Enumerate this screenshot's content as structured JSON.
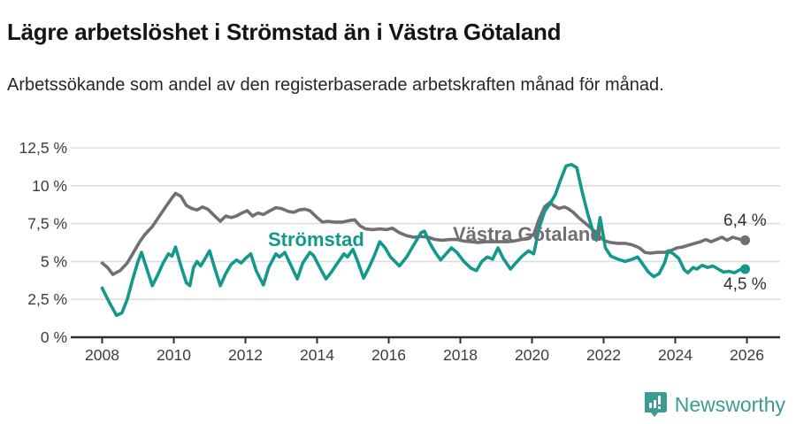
{
  "header": {
    "title": "Lägre arbetslöshet i Strömstad än i Västra Götaland",
    "subtitle": "Arbetssökande som andel av den registerbaserade arbetskraften månad för månad."
  },
  "footer": {
    "brand": "Newsworthy",
    "logo_icon": "newsworthy-speech-bubble-bar-chart-icon",
    "brand_color": "#3b9c94"
  },
  "colors": {
    "stromstad": "#12998b",
    "vastra_gotaland": "#6f6f74",
    "gridline": "#dedede",
    "axis": "#2f2f2f",
    "tick_text": "#3d3d3d"
  },
  "chart_data": {
    "type": "line",
    "title": "Lägre arbetslöshet i Strömstad än i Västra Götaland",
    "subtitle": "Arbetssökande som andel av den registerbaserade arbetskraften månad för månad.",
    "xlabel": "",
    "ylabel": "",
    "grid": "horizontal",
    "legend": "inline-labels",
    "xlim": [
      2007.45,
      2026.9
    ],
    "ylim": [
      0,
      12.5
    ],
    "x_tick_values": [
      2008,
      2010,
      2012,
      2014,
      2016,
      2018,
      2020,
      2022,
      2024,
      2026
    ],
    "x_tick_labels": [
      "2008",
      "2010",
      "2012",
      "2014",
      "2016",
      "2018",
      "2020",
      "2022",
      "2024",
      "2026"
    ],
    "y_tick_values": [
      0,
      2.5,
      5,
      7.5,
      10,
      12.5
    ],
    "y_tick_labels": [
      "0 %",
      "2,5 %",
      "5 %",
      "7,5 %",
      "10 %",
      "12,5 %"
    ],
    "series": [
      {
        "name": "Västra Götaland",
        "color": "#6f6f74",
        "end_label": "6,4 %",
        "final_value": 6.4,
        "points": [
          [
            2008.0,
            4.9
          ],
          [
            2008.15,
            4.6
          ],
          [
            2008.3,
            4.15
          ],
          [
            2008.5,
            4.4
          ],
          [
            2008.7,
            4.9
          ],
          [
            2008.9,
            5.7
          ],
          [
            2009.05,
            6.3
          ],
          [
            2009.2,
            6.8
          ],
          [
            2009.4,
            7.3
          ],
          [
            2009.6,
            8.0
          ],
          [
            2009.8,
            8.7
          ],
          [
            2009.95,
            9.2
          ],
          [
            2010.05,
            9.5
          ],
          [
            2010.2,
            9.3
          ],
          [
            2010.35,
            8.7
          ],
          [
            2010.5,
            8.5
          ],
          [
            2010.65,
            8.4
          ],
          [
            2010.8,
            8.6
          ],
          [
            2010.95,
            8.45
          ],
          [
            2011.1,
            8.1
          ],
          [
            2011.3,
            7.65
          ],
          [
            2011.45,
            8.0
          ],
          [
            2011.6,
            7.9
          ],
          [
            2011.75,
            8.0
          ],
          [
            2011.9,
            8.2
          ],
          [
            2012.05,
            8.35
          ],
          [
            2012.2,
            8.0
          ],
          [
            2012.35,
            8.2
          ],
          [
            2012.5,
            8.1
          ],
          [
            2012.65,
            8.3
          ],
          [
            2012.85,
            8.55
          ],
          [
            2013.0,
            8.5
          ],
          [
            2013.2,
            8.3
          ],
          [
            2013.35,
            8.25
          ],
          [
            2013.5,
            8.4
          ],
          [
            2013.65,
            8.45
          ],
          [
            2013.8,
            8.35
          ],
          [
            2014.0,
            7.9
          ],
          [
            2014.15,
            7.6
          ],
          [
            2014.3,
            7.65
          ],
          [
            2014.5,
            7.6
          ],
          [
            2014.7,
            7.6
          ],
          [
            2014.9,
            7.7
          ],
          [
            2015.05,
            7.75
          ],
          [
            2015.2,
            7.35
          ],
          [
            2015.35,
            7.15
          ],
          [
            2015.55,
            7.1
          ],
          [
            2015.75,
            7.15
          ],
          [
            2015.95,
            7.1
          ],
          [
            2016.1,
            7.2
          ],
          [
            2016.3,
            6.9
          ],
          [
            2016.5,
            6.7
          ],
          [
            2016.7,
            6.6
          ],
          [
            2016.9,
            6.65
          ],
          [
            2017.1,
            6.6
          ],
          [
            2017.3,
            6.45
          ],
          [
            2017.5,
            6.4
          ],
          [
            2017.7,
            6.45
          ],
          [
            2017.9,
            6.45
          ],
          [
            2018.1,
            6.35
          ],
          [
            2018.3,
            6.3
          ],
          [
            2018.5,
            6.25
          ],
          [
            2018.7,
            6.3
          ],
          [
            2018.9,
            6.3
          ],
          [
            2019.1,
            6.3
          ],
          [
            2019.3,
            6.3
          ],
          [
            2019.5,
            6.35
          ],
          [
            2019.7,
            6.45
          ],
          [
            2019.9,
            6.55
          ],
          [
            2020.05,
            6.8
          ],
          [
            2020.2,
            7.8
          ],
          [
            2020.35,
            8.6
          ],
          [
            2020.5,
            8.9
          ],
          [
            2020.6,
            8.7
          ],
          [
            2020.75,
            8.5
          ],
          [
            2020.9,
            8.6
          ],
          [
            2021.0,
            8.5
          ],
          [
            2021.15,
            8.25
          ],
          [
            2021.3,
            7.9
          ],
          [
            2021.45,
            7.6
          ],
          [
            2021.6,
            7.3
          ],
          [
            2021.75,
            7.0
          ],
          [
            2021.9,
            6.6
          ],
          [
            2022.05,
            6.35
          ],
          [
            2022.2,
            6.25
          ],
          [
            2022.4,
            6.2
          ],
          [
            2022.6,
            6.2
          ],
          [
            2022.8,
            6.1
          ],
          [
            2023.0,
            5.9
          ],
          [
            2023.15,
            5.6
          ],
          [
            2023.3,
            5.55
          ],
          [
            2023.5,
            5.6
          ],
          [
            2023.7,
            5.6
          ],
          [
            2023.9,
            5.75
          ],
          [
            2024.05,
            5.9
          ],
          [
            2024.2,
            5.95
          ],
          [
            2024.4,
            6.1
          ],
          [
            2024.55,
            6.2
          ],
          [
            2024.7,
            6.3
          ],
          [
            2024.85,
            6.45
          ],
          [
            2025.0,
            6.3
          ],
          [
            2025.15,
            6.45
          ],
          [
            2025.3,
            6.6
          ],
          [
            2025.45,
            6.4
          ],
          [
            2025.6,
            6.6
          ],
          [
            2025.75,
            6.5
          ],
          [
            2025.95,
            6.4
          ]
        ]
      },
      {
        "name": "Strömstad",
        "color": "#12998b",
        "end_label": "4,5 %",
        "final_value": 4.5,
        "points": [
          [
            2008.0,
            3.25
          ],
          [
            2008.2,
            2.3
          ],
          [
            2008.4,
            1.45
          ],
          [
            2008.55,
            1.6
          ],
          [
            2008.7,
            2.5
          ],
          [
            2008.85,
            3.8
          ],
          [
            2009.0,
            5.0
          ],
          [
            2009.1,
            5.6
          ],
          [
            2009.25,
            4.5
          ],
          [
            2009.4,
            3.4
          ],
          [
            2009.55,
            4.1
          ],
          [
            2009.7,
            4.9
          ],
          [
            2009.85,
            5.5
          ],
          [
            2009.95,
            5.35
          ],
          [
            2010.05,
            5.95
          ],
          [
            2010.2,
            4.7
          ],
          [
            2010.35,
            3.6
          ],
          [
            2010.45,
            3.4
          ],
          [
            2010.55,
            4.6
          ],
          [
            2010.65,
            5.0
          ],
          [
            2010.75,
            4.7
          ],
          [
            2010.9,
            5.3
          ],
          [
            2011.0,
            5.7
          ],
          [
            2011.15,
            4.5
          ],
          [
            2011.3,
            3.4
          ],
          [
            2011.45,
            4.2
          ],
          [
            2011.6,
            4.8
          ],
          [
            2011.75,
            5.1
          ],
          [
            2011.88,
            4.9
          ],
          [
            2012.0,
            5.2
          ],
          [
            2012.15,
            5.5
          ],
          [
            2012.3,
            4.4
          ],
          [
            2012.5,
            3.45
          ],
          [
            2012.65,
            4.6
          ],
          [
            2012.85,
            5.5
          ],
          [
            2012.95,
            5.3
          ],
          [
            2013.1,
            5.6
          ],
          [
            2013.3,
            4.6
          ],
          [
            2013.45,
            3.85
          ],
          [
            2013.6,
            4.9
          ],
          [
            2013.8,
            5.6
          ],
          [
            2013.9,
            5.4
          ],
          [
            2014.1,
            4.5
          ],
          [
            2014.25,
            3.85
          ],
          [
            2014.4,
            4.3
          ],
          [
            2014.6,
            5.0
          ],
          [
            2014.75,
            5.5
          ],
          [
            2014.85,
            5.3
          ],
          [
            2015.0,
            5.8
          ],
          [
            2015.15,
            4.9
          ],
          [
            2015.3,
            3.9
          ],
          [
            2015.45,
            4.6
          ],
          [
            2015.6,
            5.4
          ],
          [
            2015.75,
            6.3
          ],
          [
            2015.9,
            5.9
          ],
          [
            2016.05,
            5.3
          ],
          [
            2016.3,
            4.7
          ],
          [
            2016.5,
            5.3
          ],
          [
            2016.7,
            6.1
          ],
          [
            2016.9,
            6.9
          ],
          [
            2017.0,
            7.0
          ],
          [
            2017.15,
            6.2
          ],
          [
            2017.3,
            5.6
          ],
          [
            2017.45,
            5.1
          ],
          [
            2017.6,
            5.5
          ],
          [
            2017.75,
            5.9
          ],
          [
            2017.9,
            5.6
          ],
          [
            2018.1,
            5.0
          ],
          [
            2018.3,
            4.55
          ],
          [
            2018.45,
            4.4
          ],
          [
            2018.6,
            5.0
          ],
          [
            2018.75,
            5.3
          ],
          [
            2018.9,
            5.15
          ],
          [
            2019.05,
            5.9
          ],
          [
            2019.2,
            5.2
          ],
          [
            2019.4,
            4.5
          ],
          [
            2019.55,
            4.9
          ],
          [
            2019.7,
            5.3
          ],
          [
            2019.9,
            5.7
          ],
          [
            2020.05,
            5.5
          ],
          [
            2020.2,
            7.2
          ],
          [
            2020.35,
            8.3
          ],
          [
            2020.5,
            8.8
          ],
          [
            2020.65,
            9.4
          ],
          [
            2020.8,
            10.4
          ],
          [
            2020.95,
            11.3
          ],
          [
            2021.1,
            11.4
          ],
          [
            2021.25,
            11.2
          ],
          [
            2021.4,
            9.6
          ],
          [
            2021.55,
            8.2
          ],
          [
            2021.7,
            7.0
          ],
          [
            2021.8,
            6.4
          ],
          [
            2021.9,
            7.9
          ],
          [
            2022.05,
            5.9
          ],
          [
            2022.2,
            5.35
          ],
          [
            2022.4,
            5.15
          ],
          [
            2022.6,
            5.0
          ],
          [
            2022.8,
            5.15
          ],
          [
            2022.95,
            5.3
          ],
          [
            2023.1,
            4.8
          ],
          [
            2023.25,
            4.3
          ],
          [
            2023.4,
            4.0
          ],
          [
            2023.55,
            4.2
          ],
          [
            2023.7,
            4.9
          ],
          [
            2023.8,
            5.7
          ],
          [
            2023.95,
            5.5
          ],
          [
            2024.1,
            5.2
          ],
          [
            2024.25,
            4.45
          ],
          [
            2024.35,
            4.25
          ],
          [
            2024.5,
            4.6
          ],
          [
            2024.6,
            4.5
          ],
          [
            2024.75,
            4.75
          ],
          [
            2024.9,
            4.6
          ],
          [
            2025.05,
            4.7
          ],
          [
            2025.2,
            4.5
          ],
          [
            2025.35,
            4.3
          ],
          [
            2025.5,
            4.35
          ],
          [
            2025.65,
            4.25
          ],
          [
            2025.8,
            4.45
          ],
          [
            2025.95,
            4.5
          ]
        ]
      }
    ]
  }
}
